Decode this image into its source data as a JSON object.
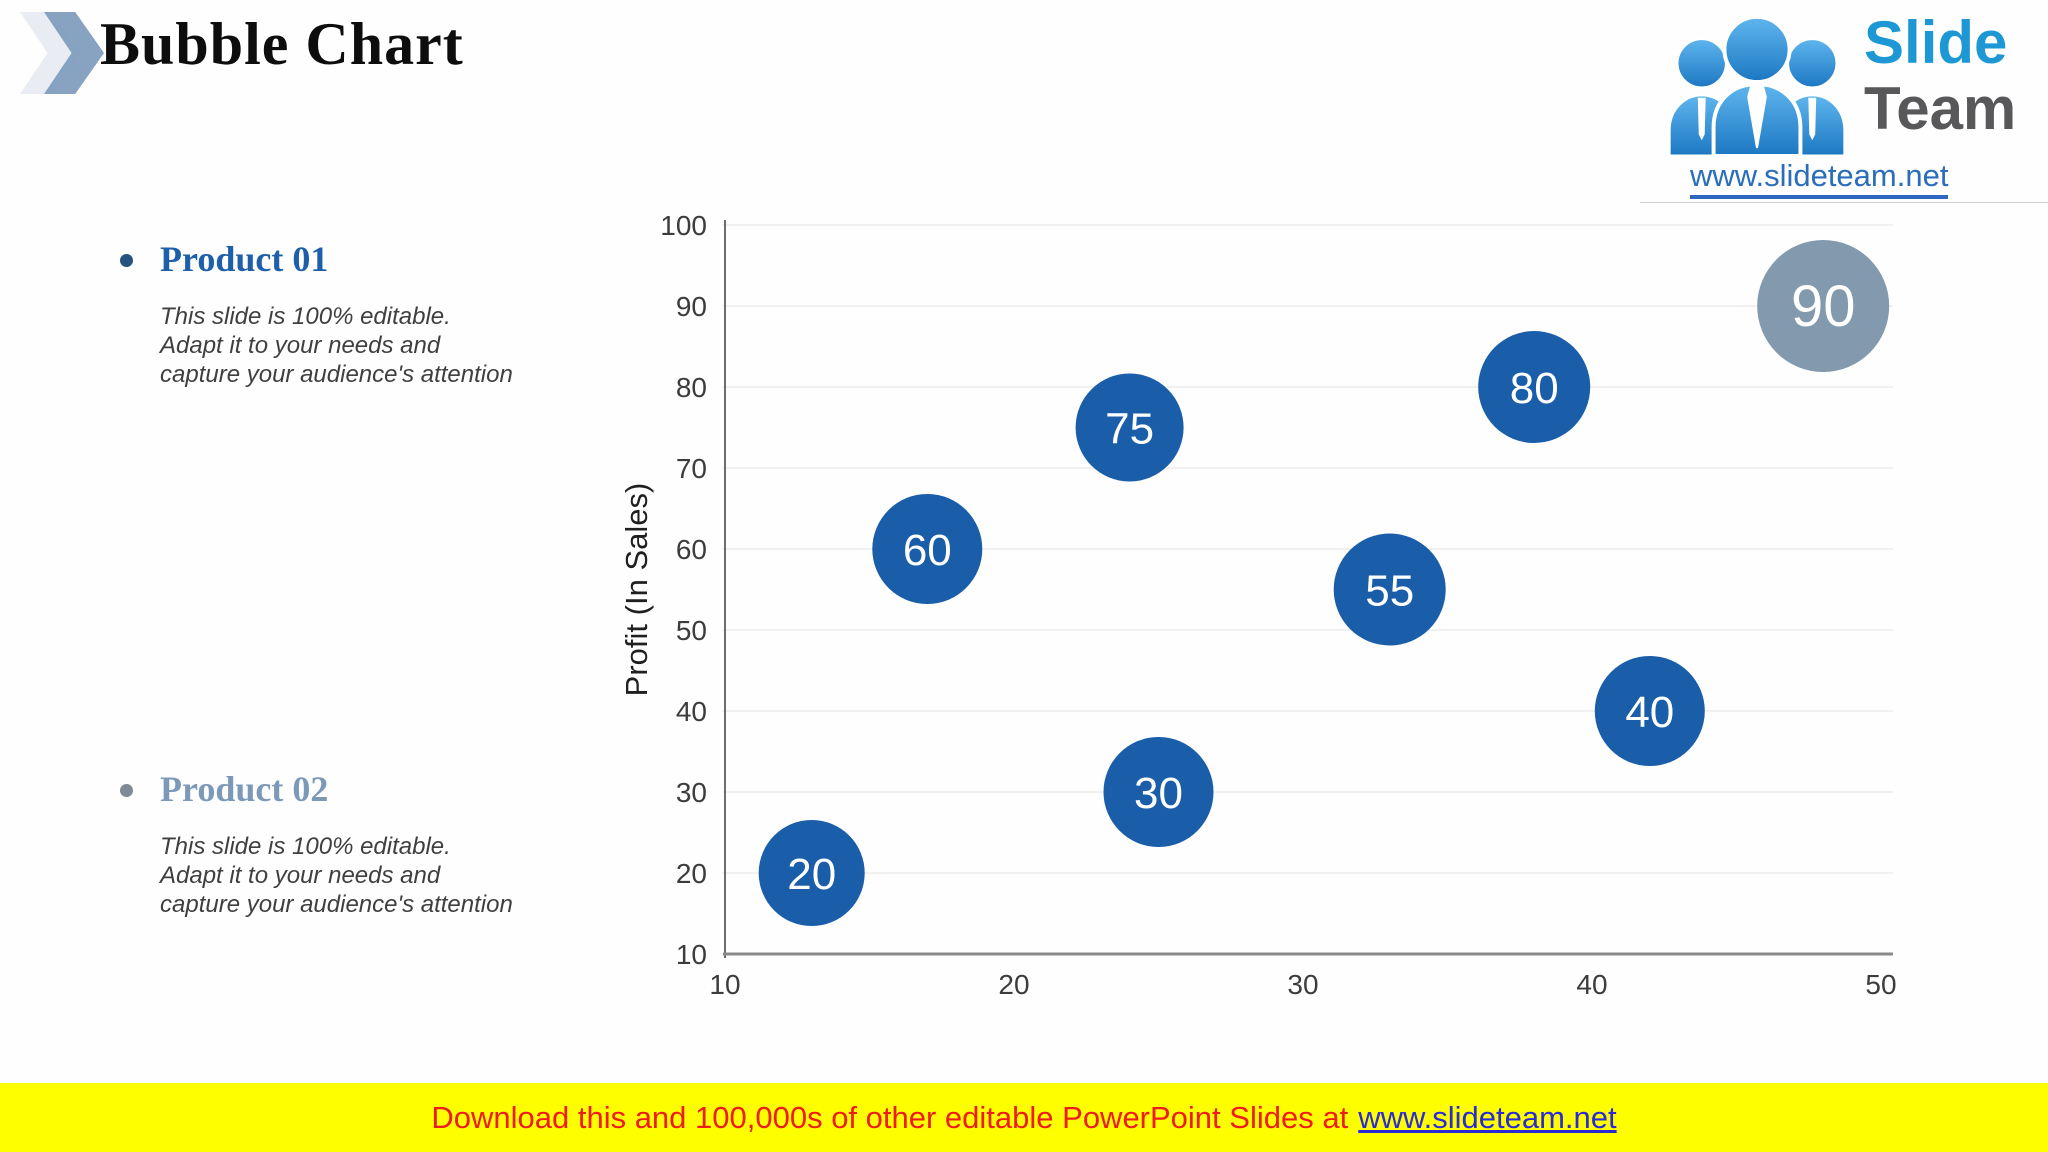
{
  "slide": {
    "title": "Bubble Chart",
    "products": [
      {
        "heading": "Product 01",
        "body": "This slide is 100% editable.\nAdapt it to your needs and\ncapture your audience's attention"
      },
      {
        "heading": "Product 02",
        "body": "This slide is 100% editable.\nAdapt it to your needs and\ncapture your audience's attention"
      }
    ]
  },
  "logo": {
    "slide_word": "Slide",
    "team_word": "Team",
    "url": "www.slideteam.net"
  },
  "footer": {
    "text": "Download this and 100,000s of other editable PowerPoint Slides at",
    "link": "www.slideteam.net"
  },
  "chart_data": {
    "type": "scatter",
    "subtype": "bubble",
    "title": "",
    "xlabel": "",
    "ylabel": "Profit (In Sales)",
    "xlim": [
      10,
      50
    ],
    "ylim": [
      10,
      100
    ],
    "xticks": [
      10,
      20,
      30,
      40,
      50
    ],
    "yticks": [
      10,
      20,
      30,
      40,
      50,
      60,
      70,
      80,
      90,
      100
    ],
    "grid": "horizontal",
    "legend": "none",
    "colors": {
      "blue": "#1a5da9",
      "gray": "#8299ae"
    },
    "points": [
      {
        "label": "20",
        "x": 13,
        "y": 20,
        "r": 53,
        "color": "blue"
      },
      {
        "label": "30",
        "x": 25,
        "y": 30,
        "r": 55,
        "color": "blue"
      },
      {
        "label": "40",
        "x": 42,
        "y": 40,
        "r": 55,
        "color": "blue"
      },
      {
        "label": "55",
        "x": 33,
        "y": 55,
        "r": 56,
        "color": "blue"
      },
      {
        "label": "60",
        "x": 17,
        "y": 60,
        "r": 55,
        "color": "blue"
      },
      {
        "label": "75",
        "x": 24,
        "y": 75,
        "r": 54,
        "color": "blue"
      },
      {
        "label": "80",
        "x": 38,
        "y": 80,
        "r": 56,
        "color": "blue"
      },
      {
        "label": "90",
        "x": 48,
        "y": 90,
        "r": 66,
        "color": "gray"
      }
    ]
  }
}
